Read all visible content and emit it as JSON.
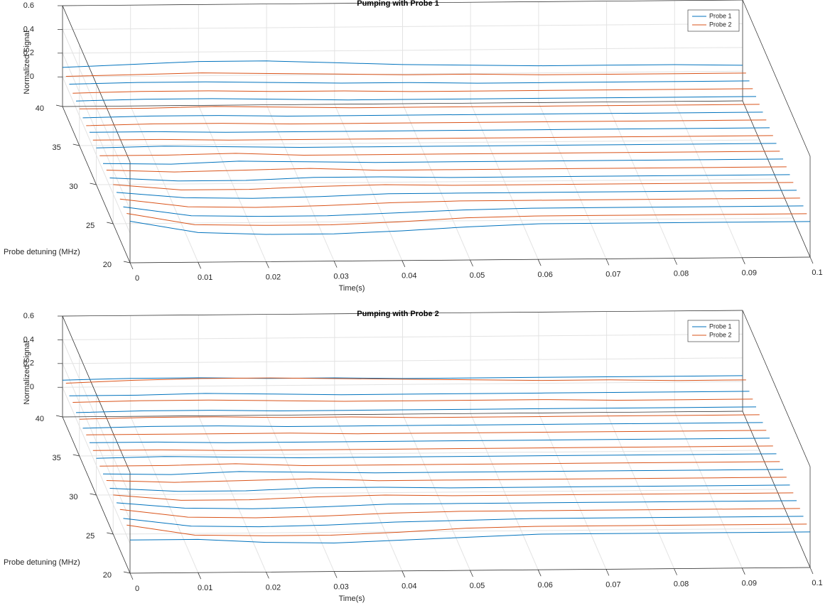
{
  "chart_data": [
    {
      "type": "waterfall3d",
      "title": "Pumping with Probe 1",
      "xlabel": "Time(s)",
      "ylabel": "Probe detuning (MHz)",
      "zlabel": "Normalized Signal",
      "xlim": [
        0,
        0.1
      ],
      "ylim": [
        20,
        40
      ],
      "zlim": [
        -0.25,
        0.6
      ],
      "xticks": [
        0,
        0.01,
        0.02,
        0.03,
        0.04,
        0.05,
        0.06,
        0.07,
        0.08,
        0.09,
        0.1
      ],
      "yticks": [
        20,
        25,
        30,
        35,
        40
      ],
      "zticks": [
        0,
        0.2,
        0.4,
        0.6
      ],
      "grid": true,
      "legend": "upper right",
      "x": [
        0,
        0.01,
        0.02,
        0.03,
        0.04,
        0.05,
        0.06,
        0.07,
        0.08,
        0.09,
        0.1
      ],
      "series": [
        {
          "name": "Probe 1",
          "color": "#0072bd",
          "traces": [
            {
              "detuning": 20,
              "values": [
                0.1,
                0.0,
                -0.02,
                -0.02,
                0.0,
                0.03,
                0.05,
                0.05,
                0.05,
                0.05,
                0.05
              ]
            },
            {
              "detuning": 22,
              "values": [
                0.09,
                0.01,
                0.0,
                0.0,
                0.02,
                0.04,
                0.05,
                0.05,
                0.05,
                0.05,
                0.05
              ]
            },
            {
              "detuning": 24,
              "values": [
                0.08,
                0.03,
                0.02,
                0.03,
                0.05,
                0.05,
                0.05,
                0.05,
                0.05,
                0.05,
                0.05
              ]
            },
            {
              "detuning": 26,
              "values": [
                0.07,
                0.04,
                0.04,
                0.06,
                0.06,
                0.05,
                0.05,
                0.05,
                0.05,
                0.05,
                0.05
              ]
            },
            {
              "detuning": 28,
              "values": [
                0.06,
                0.05,
                0.07,
                0.06,
                0.05,
                0.05,
                0.05,
                0.05,
                0.05,
                0.05,
                0.05
              ]
            },
            {
              "detuning": 30,
              "values": [
                0.06,
                0.07,
                0.06,
                0.05,
                0.05,
                0.05,
                0.05,
                0.05,
                0.05,
                0.05,
                0.05
              ]
            },
            {
              "detuning": 32,
              "values": [
                0.06,
                0.06,
                0.05,
                0.05,
                0.05,
                0.05,
                0.05,
                0.05,
                0.05,
                0.05,
                0.05
              ]
            },
            {
              "detuning": 34,
              "values": [
                0.05,
                0.06,
                0.06,
                0.05,
                0.05,
                0.05,
                0.05,
                0.05,
                0.05,
                0.05,
                0.05
              ]
            },
            {
              "detuning": 36,
              "values": [
                0.06,
                0.07,
                0.07,
                0.06,
                0.05,
                0.05,
                0.05,
                0.05,
                0.05,
                0.05,
                0.05
              ]
            },
            {
              "detuning": 38,
              "values": [
                0.07,
                0.08,
                0.08,
                0.07,
                0.06,
                0.06,
                0.05,
                0.05,
                0.05,
                0.05,
                0.05
              ]
            },
            {
              "detuning": 40,
              "values": [
                0.08,
                0.1,
                0.12,
                0.12,
                0.1,
                0.08,
                0.07,
                0.06,
                0.06,
                0.06,
                0.05
              ]
            }
          ]
        },
        {
          "name": "Probe 2",
          "color": "#d95319",
          "traces": [
            {
              "detuning": 21,
              "values": [
                0.1,
                0.0,
                -0.01,
                -0.01,
                0.01,
                0.04,
                0.05,
                0.05,
                0.05,
                0.05,
                0.05
              ]
            },
            {
              "detuning": 23,
              "values": [
                0.09,
                0.02,
                0.01,
                0.02,
                0.04,
                0.05,
                0.05,
                0.05,
                0.05,
                0.05,
                0.05
              ]
            },
            {
              "detuning": 25,
              "values": [
                0.08,
                0.03,
                0.03,
                0.05,
                0.06,
                0.05,
                0.05,
                0.05,
                0.05,
                0.05,
                0.05
              ]
            },
            {
              "detuning": 27,
              "values": [
                0.07,
                0.05,
                0.06,
                0.07,
                0.05,
                0.05,
                0.05,
                0.05,
                0.05,
                0.05,
                0.05
              ]
            },
            {
              "detuning": 29,
              "values": [
                0.06,
                0.06,
                0.07,
                0.05,
                0.05,
                0.05,
                0.05,
                0.05,
                0.05,
                0.05,
                0.05
              ]
            },
            {
              "detuning": 31,
              "values": [
                0.06,
                0.06,
                0.05,
                0.05,
                0.05,
                0.05,
                0.05,
                0.05,
                0.05,
                0.05,
                0.05
              ]
            },
            {
              "detuning": 33,
              "values": [
                0.05,
                0.06,
                0.06,
                0.05,
                0.05,
                0.05,
                0.05,
                0.05,
                0.05,
                0.05,
                0.05
              ]
            },
            {
              "detuning": 35,
              "values": [
                0.06,
                0.06,
                0.07,
                0.06,
                0.05,
                0.05,
                0.05,
                0.05,
                0.05,
                0.05,
                0.05
              ]
            },
            {
              "detuning": 37,
              "values": [
                0.06,
                0.07,
                0.07,
                0.06,
                0.06,
                0.05,
                0.05,
                0.05,
                0.05,
                0.05,
                0.05
              ]
            },
            {
              "detuning": 39,
              "values": [
                0.07,
                0.08,
                0.09,
                0.08,
                0.07,
                0.06,
                0.06,
                0.05,
                0.05,
                0.05,
                0.05
              ]
            }
          ]
        }
      ]
    },
    {
      "type": "waterfall3d",
      "title": "Pumping with Probe 2",
      "xlabel": "Time(s)",
      "ylabel": "Probe detuning (MHz)",
      "zlabel": "Normalized Signal",
      "xlim": [
        0,
        0.1
      ],
      "ylim": [
        20,
        40
      ],
      "zlim": [
        -0.25,
        0.6
      ],
      "xticks": [
        0,
        0.01,
        0.02,
        0.03,
        0.04,
        0.05,
        0.06,
        0.07,
        0.08,
        0.09,
        0.1
      ],
      "yticks": [
        20,
        25,
        30,
        35,
        40
      ],
      "zticks": [
        0,
        0.2,
        0.4,
        0.6
      ],
      "grid": true,
      "legend": "upper right",
      "x": [
        0,
        0.01,
        0.02,
        0.03,
        0.04,
        0.05,
        0.06,
        0.07,
        0.08,
        0.09,
        0.1
      ],
      "series": [
        {
          "name": "Probe 1",
          "color": "#0072bd",
          "traces": [
            {
              "detuning": 20,
              "values": [
                0.03,
                0.03,
                0.0,
                -0.01,
                0.01,
                0.03,
                0.05,
                0.05,
                0.05,
                0.05,
                0.05
              ]
            },
            {
              "detuning": 22,
              "values": [
                0.08,
                0.01,
                0.0,
                0.01,
                0.03,
                0.04,
                0.05,
                0.05,
                0.05,
                0.05,
                0.05
              ]
            },
            {
              "detuning": 24,
              "values": [
                0.08,
                0.03,
                0.02,
                0.03,
                0.05,
                0.05,
                0.05,
                0.05,
                0.05,
                0.05,
                0.05
              ]
            },
            {
              "detuning": 26,
              "values": [
                0.07,
                0.04,
                0.04,
                0.06,
                0.06,
                0.05,
                0.05,
                0.05,
                0.05,
                0.05,
                0.05
              ]
            },
            {
              "detuning": 28,
              "values": [
                0.06,
                0.05,
                0.07,
                0.06,
                0.05,
                0.05,
                0.05,
                0.05,
                0.05,
                0.05,
                0.05
              ]
            },
            {
              "detuning": 30,
              "values": [
                0.06,
                0.07,
                0.06,
                0.05,
                0.05,
                0.05,
                0.05,
                0.05,
                0.05,
                0.05,
                0.05
              ]
            },
            {
              "detuning": 32,
              "values": [
                0.06,
                0.06,
                0.05,
                0.05,
                0.05,
                0.05,
                0.05,
                0.05,
                0.05,
                0.05,
                0.05
              ]
            },
            {
              "detuning": 34,
              "values": [
                0.05,
                0.06,
                0.06,
                0.05,
                0.05,
                0.05,
                0.05,
                0.05,
                0.05,
                0.05,
                0.05
              ]
            },
            {
              "detuning": 36,
              "values": [
                0.05,
                0.06,
                0.06,
                0.05,
                0.05,
                0.05,
                0.05,
                0.05,
                0.05,
                0.05,
                0.05
              ]
            },
            {
              "detuning": 38,
              "values": [
                0.06,
                0.06,
                0.07,
                0.06,
                0.05,
                0.05,
                0.05,
                0.05,
                0.05,
                0.05,
                0.05
              ]
            },
            {
              "detuning": 40,
              "values": [
                0.06,
                0.07,
                0.07,
                0.06,
                0.06,
                0.05,
                0.05,
                0.05,
                0.05,
                0.05,
                0.05
              ]
            }
          ]
        },
        {
          "name": "Probe 2",
          "color": "#d95319",
          "traces": [
            {
              "detuning": 21,
              "values": [
                0.09,
                0.0,
                -0.01,
                -0.01,
                0.01,
                0.04,
                0.05,
                0.05,
                0.05,
                0.05,
                0.05
              ]
            },
            {
              "detuning": 23,
              "values": [
                0.09,
                0.02,
                0.01,
                0.02,
                0.04,
                0.05,
                0.05,
                0.05,
                0.05,
                0.05,
                0.05
              ]
            },
            {
              "detuning": 25,
              "values": [
                0.08,
                0.03,
                0.03,
                0.05,
                0.06,
                0.05,
                0.05,
                0.05,
                0.05,
                0.05,
                0.05
              ]
            },
            {
              "detuning": 27,
              "values": [
                0.07,
                0.05,
                0.06,
                0.07,
                0.05,
                0.05,
                0.05,
                0.05,
                0.05,
                0.05,
                0.05
              ]
            },
            {
              "detuning": 29,
              "values": [
                0.06,
                0.06,
                0.07,
                0.05,
                0.05,
                0.05,
                0.05,
                0.05,
                0.05,
                0.05,
                0.05
              ]
            },
            {
              "detuning": 31,
              "values": [
                0.06,
                0.06,
                0.05,
                0.05,
                0.05,
                0.05,
                0.05,
                0.05,
                0.05,
                0.05,
                0.05
              ]
            },
            {
              "detuning": 33,
              "values": [
                0.06,
                0.06,
                0.06,
                0.06,
                0.05,
                0.05,
                0.05,
                0.05,
                0.05,
                0.05,
                0.05
              ]
            },
            {
              "detuning": 35,
              "values": [
                0.06,
                0.07,
                0.07,
                0.06,
                0.06,
                0.05,
                0.05,
                0.05,
                0.05,
                0.05,
                0.05
              ]
            },
            {
              "detuning": 37,
              "values": [
                0.07,
                0.08,
                0.08,
                0.07,
                0.06,
                0.06,
                0.06,
                0.06,
                0.05,
                0.05,
                0.05
              ]
            },
            {
              "detuning": 39,
              "values": [
                0.1,
                0.12,
                0.13,
                0.13,
                0.12,
                0.11,
                0.1,
                0.09,
                0.09,
                0.08,
                0.08
              ]
            }
          ]
        }
      ]
    }
  ]
}
